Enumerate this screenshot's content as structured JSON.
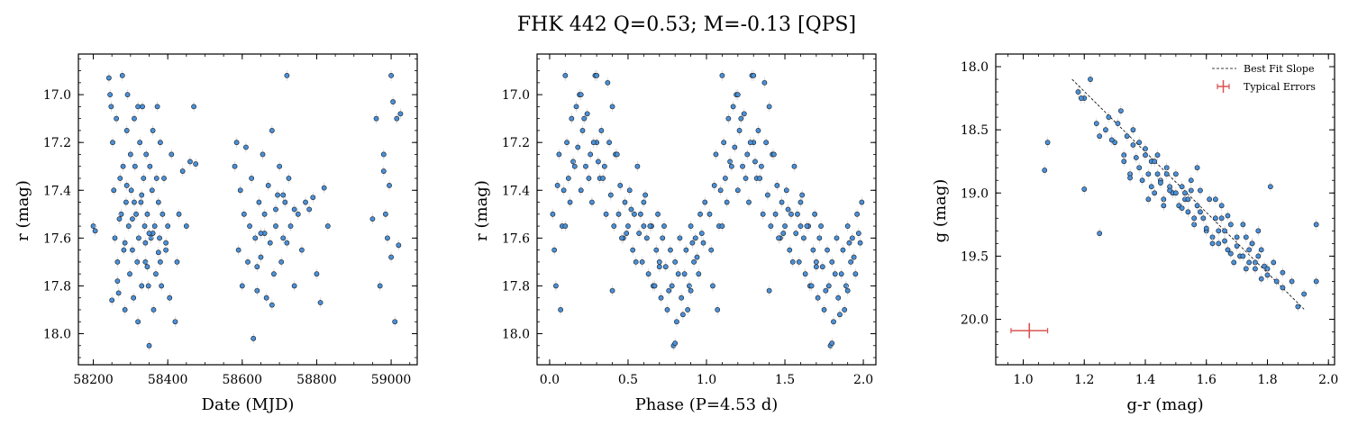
{
  "figure": {
    "title": "FHK 442  Q=0.53; M=-0.13 [QPS]"
  },
  "chart_data": [
    {
      "type": "scatter",
      "xlabel": "Date (MJD)",
      "ylabel": "r (mag)",
      "xlim": [
        58160,
        59070
      ],
      "ylim": [
        18.13,
        16.83
      ],
      "y_inverted": true,
      "xticks": [
        58200,
        58400,
        58600,
        58800,
        59000
      ],
      "yticks": [
        17.0,
        17.2,
        17.4,
        17.6,
        17.8,
        18.0
      ],
      "x": [
        58200,
        58205,
        58242,
        58245,
        58248,
        58252,
        58255,
        58258,
        58262,
        58265,
        58268,
        58272,
        58275,
        58278,
        58280,
        58282,
        58285,
        58288,
        58290,
        58292,
        58295,
        58298,
        58300,
        58302,
        58305,
        58308,
        58310,
        58312,
        58315,
        58318,
        58320,
        58322,
        58325,
        58328,
        58330,
        58332,
        58335,
        58338,
        58340,
        58342,
        58345,
        58348,
        58350,
        58352,
        58355,
        58358,
        58360,
        58362,
        58365,
        58368,
        58370,
        58372,
        58375,
        58378,
        58380,
        58383,
        58386,
        58390,
        58395,
        58400,
        58405,
        58410,
        58420,
        58425,
        58430,
        58440,
        58450,
        58460,
        58470,
        58475,
        58580,
        58585,
        58590,
        58595,
        58600,
        58605,
        58610,
        58615,
        58620,
        58625,
        58630,
        58635,
        58640,
        58645,
        58650,
        58655,
        58660,
        58665,
        58670,
        58675,
        58680,
        58685,
        58690,
        58695,
        58700,
        58705,
        58710,
        58715,
        58720,
        58725,
        58730,
        58740,
        58750,
        58760,
        58770,
        58780,
        58790,
        58800,
        58810,
        58820,
        58830,
        58950,
        58960,
        58970,
        58980,
        58985,
        58990,
        58995,
        59000,
        59005,
        59010,
        59015,
        59020,
        59025,
        58250,
        58265,
        58285,
        58305,
        58330,
        58345,
        58360,
        58375,
        58395,
        58640,
        58660,
        58690,
        58720,
        58740,
        58980,
        59000,
        58320,
        58340,
        58290,
        58310,
        58270,
        58350,
        58380,
        58710,
        58650,
        58680
      ],
      "y": [
        17.55,
        17.57,
        16.93,
        17.0,
        17.05,
        17.2,
        17.4,
        17.6,
        17.1,
        17.7,
        17.83,
        17.35,
        17.5,
        16.92,
        17.3,
        17.65,
        17.9,
        17.45,
        17.15,
        17.0,
        17.55,
        17.75,
        17.25,
        17.4,
        17.65,
        17.85,
        17.1,
        17.3,
        17.5,
        17.7,
        17.95,
        17.6,
        17.2,
        17.45,
        17.8,
        17.05,
        17.35,
        17.55,
        17.7,
        17.25,
        17.5,
        17.8,
        18.05,
        17.3,
        17.6,
        17.4,
        17.15,
        17.9,
        17.55,
        17.75,
        17.35,
        17.05,
        17.45,
        17.6,
        17.2,
        17.8,
        17.5,
        17.35,
        17.65,
        17.55,
        17.85,
        17.25,
        17.95,
        17.7,
        17.5,
        17.32,
        17.55,
        17.28,
        17.05,
        17.29,
        17.3,
        17.2,
        17.65,
        17.4,
        17.8,
        17.5,
        17.22,
        17.7,
        17.55,
        17.35,
        18.02,
        17.6,
        17.82,
        17.45,
        17.68,
        17.25,
        17.5,
        17.85,
        17.38,
        17.62,
        17.15,
        17.75,
        17.55,
        17.42,
        17.3,
        17.7,
        17.6,
        17.45,
        16.92,
        17.35,
        17.55,
        17.8,
        17.5,
        17.65,
        17.45,
        17.48,
        17.43,
        17.75,
        17.87,
        17.39,
        17.55,
        17.52,
        17.1,
        17.8,
        17.25,
        17.5,
        17.6,
        17.38,
        16.92,
        17.03,
        17.95,
        17.1,
        17.63,
        17.08,
        17.86,
        17.78,
        17.62,
        17.52,
        17.42,
        17.72,
        17.58,
        17.66,
        17.62,
        17.72,
        17.58,
        17.48,
        17.62,
        17.48,
        17.32,
        17.68,
        17.05,
        17.62,
        17.38,
        17.45,
        17.52,
        17.58,
        17.7,
        17.42,
        17.58,
        17.88
      ],
      "marker_color": "#4a90d9"
    },
    {
      "type": "scatter",
      "xlabel": "Phase (P=4.53 d)",
      "ylabel": "r (mag)",
      "xlim": [
        -0.08,
        2.08
      ],
      "ylim": [
        18.13,
        16.83
      ],
      "y_inverted": true,
      "xticks": [
        0.0,
        0.5,
        1.0,
        1.5,
        2.0
      ],
      "xticklabels": [
        "0.0",
        "0.5",
        "1.0",
        "1.5",
        "2.0"
      ],
      "yticks": [
        17.0,
        17.2,
        17.4,
        17.6,
        17.8,
        18.0
      ],
      "x": [
        0.02,
        0.03,
        0.05,
        0.06,
        0.08,
        0.09,
        0.11,
        0.12,
        0.14,
        0.15,
        0.17,
        0.18,
        0.2,
        0.21,
        0.23,
        0.24,
        0.26,
        0.27,
        0.29,
        0.3,
        0.32,
        0.33,
        0.35,
        0.36,
        0.38,
        0.39,
        0.41,
        0.42,
        0.44,
        0.45,
        0.47,
        0.48,
        0.5,
        0.51,
        0.53,
        0.54,
        0.56,
        0.57,
        0.59,
        0.6,
        0.62,
        0.63,
        0.65,
        0.66,
        0.68,
        0.69,
        0.71,
        0.72,
        0.74,
        0.75,
        0.77,
        0.78,
        0.8,
        0.81,
        0.83,
        0.84,
        0.86,
        0.87,
        0.89,
        0.9,
        0.92,
        0.93,
        0.95,
        0.96,
        0.98,
        0.99,
        0.04,
        0.1,
        0.16,
        0.22,
        0.28,
        0.34,
        0.4,
        0.46,
        0.52,
        0.58,
        0.64,
        0.7,
        0.76,
        0.82,
        0.88,
        0.94,
        0.07,
        0.13,
        0.19,
        0.25,
        0.31,
        0.37,
        0.43,
        0.49,
        0.55,
        0.61,
        0.67,
        0.73,
        0.79,
        0.85,
        0.91,
        0.97,
        0.1,
        0.2,
        0.3,
        0.4,
        0.6,
        0.7,
        0.8,
        0.9,
        1.02,
        1.03,
        1.05,
        1.06,
        1.08,
        1.09,
        1.11,
        1.12,
        1.14,
        1.15,
        1.17,
        1.18,
        1.2,
        1.21,
        1.23,
        1.24,
        1.26,
        1.27,
        1.29,
        1.3,
        1.32,
        1.33,
        1.35,
        1.36,
        1.38,
        1.39,
        1.41,
        1.42,
        1.44,
        1.45,
        1.47,
        1.48,
        1.5,
        1.51,
        1.53,
        1.54,
        1.56,
        1.57,
        1.59,
        1.6,
        1.62,
        1.63,
        1.65,
        1.66,
        1.68,
        1.69,
        1.71,
        1.72,
        1.74,
        1.75,
        1.77,
        1.78,
        1.8,
        1.81,
        1.83,
        1.84,
        1.86,
        1.87,
        1.89,
        1.9,
        1.92,
        1.93,
        1.95,
        1.96,
        1.98,
        1.99,
        1.04,
        1.1,
        1.16,
        1.22,
        1.28,
        1.34,
        1.4,
        1.46,
        1.52,
        1.58,
        1.64,
        1.7,
        1.76,
        1.82,
        1.88,
        1.94,
        1.07,
        1.13,
        1.19,
        1.25,
        1.31,
        1.37,
        1.43,
        1.49,
        1.55,
        1.61,
        1.67,
        1.73,
        1.79,
        1.85,
        1.91,
        1.97,
        1.1,
        1.2,
        1.3,
        1.4,
        1.6,
        1.7,
        1.8,
        1.9
      ],
      "y": [
        17.5,
        17.65,
        17.38,
        17.25,
        17.55,
        17.4,
        17.2,
        17.35,
        17.1,
        17.28,
        17.05,
        17.22,
        17.4,
        17.15,
        17.3,
        17.08,
        17.25,
        17.45,
        16.92,
        17.2,
        17.35,
        17.15,
        17.3,
        17.5,
        17.2,
        17.42,
        17.55,
        17.25,
        17.5,
        17.38,
        17.6,
        17.45,
        17.55,
        17.4,
        17.65,
        17.5,
        17.3,
        17.58,
        17.7,
        17.45,
        17.6,
        17.75,
        17.55,
        17.8,
        17.65,
        17.5,
        17.85,
        17.6,
        17.72,
        17.9,
        17.65,
        17.8,
        17.7,
        17.95,
        17.6,
        17.85,
        17.75,
        17.65,
        17.8,
        17.55,
        17.7,
        17.6,
        17.75,
        17.5,
        17.62,
        17.45,
        17.8,
        17.55,
        17.3,
        17.1,
        17.2,
        17.35,
        17.05,
        17.6,
        17.48,
        17.5,
        17.55,
        17.7,
        17.82,
        17.75,
        17.9,
        17.68,
        17.9,
        17.45,
        17.0,
        17.35,
        17.28,
        16.95,
        17.25,
        17.58,
        17.7,
        17.42,
        17.8,
        17.55,
        18.05,
        17.92,
        17.62,
        17.58,
        16.92,
        17.0,
        16.92,
        17.82,
        17.55,
        17.72,
        18.04,
        17.82,
        17.5,
        17.65,
        17.38,
        17.25,
        17.55,
        17.4,
        17.2,
        17.35,
        17.1,
        17.28,
        17.05,
        17.22,
        17.4,
        17.15,
        17.3,
        17.08,
        17.25,
        17.45,
        16.92,
        17.2,
        17.35,
        17.15,
        17.3,
        17.5,
        17.2,
        17.42,
        17.55,
        17.25,
        17.5,
        17.38,
        17.6,
        17.45,
        17.55,
        17.4,
        17.65,
        17.5,
        17.3,
        17.58,
        17.7,
        17.45,
        17.6,
        17.75,
        17.55,
        17.8,
        17.65,
        17.5,
        17.85,
        17.6,
        17.72,
        17.9,
        17.65,
        17.8,
        17.7,
        17.95,
        17.6,
        17.85,
        17.75,
        17.65,
        17.8,
        17.55,
        17.7,
        17.6,
        17.75,
        17.5,
        17.62,
        17.45,
        17.8,
        17.55,
        17.3,
        17.1,
        17.2,
        17.35,
        17.05,
        17.6,
        17.48,
        17.5,
        17.55,
        17.7,
        17.82,
        17.75,
        17.9,
        17.68,
        17.9,
        17.45,
        17.0,
        17.35,
        17.28,
        16.95,
        17.25,
        17.58,
        17.7,
        17.42,
        17.8,
        17.55,
        18.05,
        17.92,
        17.62,
        17.58,
        16.92,
        17.0,
        16.92,
        17.82,
        17.55,
        17.72,
        18.04,
        17.82
      ],
      "marker_color": "#4a90d9"
    },
    {
      "type": "scatter",
      "xlabel": "g-r (mag)",
      "ylabel": "g (mag)",
      "xlim": [
        0.91,
        2.02
      ],
      "ylim": [
        20.36,
        17.9
      ],
      "y_inverted": true,
      "xticks": [
        1.0,
        1.2,
        1.4,
        1.6,
        1.8,
        2.0
      ],
      "xticklabels": [
        "1.0",
        "1.2",
        "1.4",
        "1.6",
        "1.8",
        "2.0"
      ],
      "yticks": [
        18.0,
        18.5,
        19.0,
        19.5,
        20.0
      ],
      "x": [
        1.07,
        1.08,
        1.2,
        1.25,
        1.2,
        1.22,
        1.25,
        1.28,
        1.3,
        1.31,
        1.32,
        1.33,
        1.34,
        1.35,
        1.36,
        1.37,
        1.38,
        1.39,
        1.4,
        1.41,
        1.42,
        1.43,
        1.44,
        1.45,
        1.46,
        1.47,
        1.48,
        1.49,
        1.5,
        1.51,
        1.52,
        1.53,
        1.54,
        1.55,
        1.56,
        1.57,
        1.58,
        1.59,
        1.6,
        1.61,
        1.62,
        1.63,
        1.64,
        1.65,
        1.66,
        1.67,
        1.68,
        1.69,
        1.7,
        1.71,
        1.72,
        1.73,
        1.74,
        1.75,
        1.76,
        1.77,
        1.78,
        1.79,
        1.8,
        1.82,
        1.85,
        1.88,
        1.9,
        1.92,
        1.96,
        1.96,
        1.18,
        1.19,
        1.24,
        1.27,
        1.29,
        1.33,
        1.36,
        1.38,
        1.4,
        1.42,
        1.44,
        1.46,
        1.48,
        1.5,
        1.52,
        1.54,
        1.56,
        1.58,
        1.6,
        1.62,
        1.64,
        1.66,
        1.68,
        1.7,
        1.72,
        1.74,
        1.76,
        1.78,
        1.8,
        1.41,
        1.43,
        1.47,
        1.53,
        1.57,
        1.63,
        1.67,
        1.73,
        1.77,
        1.83,
        1.35,
        1.45,
        1.55,
        1.65,
        1.75,
        1.85,
        1.81
      ],
      "y": [
        18.82,
        18.6,
        18.97,
        19.32,
        18.25,
        18.1,
        18.55,
        18.4,
        18.6,
        18.45,
        18.35,
        18.7,
        18.55,
        18.85,
        18.5,
        18.72,
        18.6,
        18.9,
        18.65,
        18.85,
        18.75,
        19.0,
        18.7,
        18.9,
        19.05,
        18.8,
        18.95,
        19.0,
        18.85,
        19.1,
        18.95,
        19.05,
        19.15,
        18.9,
        19.25,
        19.1,
        18.98,
        19.2,
        19.3,
        19.05,
        19.35,
        19.2,
        19.4,
        19.1,
        19.3,
        19.45,
        19.25,
        19.55,
        19.35,
        19.5,
        19.25,
        19.6,
        19.45,
        19.4,
        19.55,
        19.5,
        19.68,
        19.58,
        19.6,
        19.55,
        19.75,
        19.7,
        19.9,
        19.8,
        19.25,
        19.7,
        18.2,
        18.25,
        18.45,
        18.5,
        18.58,
        18.75,
        18.62,
        18.8,
        18.7,
        18.95,
        18.85,
        19.1,
        18.98,
        19.0,
        19.12,
        19.05,
        19.2,
        19.15,
        19.28,
        19.4,
        19.3,
        19.38,
        19.48,
        19.42,
        19.5,
        19.55,
        19.6,
        19.45,
        19.65,
        19.05,
        18.75,
        18.85,
        19.0,
        18.8,
        19.05,
        19.18,
        19.35,
        19.3,
        19.7,
        18.88,
        18.92,
        18.98,
        19.2,
        19.4,
        19.63,
        18.95
      ],
      "marker_color": "#4a90d9",
      "best_fit_line": {
        "x": [
          1.16,
          1.92
        ],
        "y": [
          18.1,
          19.92
        ]
      },
      "typical_error": {
        "x": 1.02,
        "y": 20.09,
        "xerr": 0.06,
        "yerr": 0.06,
        "color": "#d9534f"
      },
      "legend": {
        "placement": "upper-right",
        "entries": [
          "Best Fit Slope",
          "Typical Errors"
        ]
      }
    }
  ]
}
